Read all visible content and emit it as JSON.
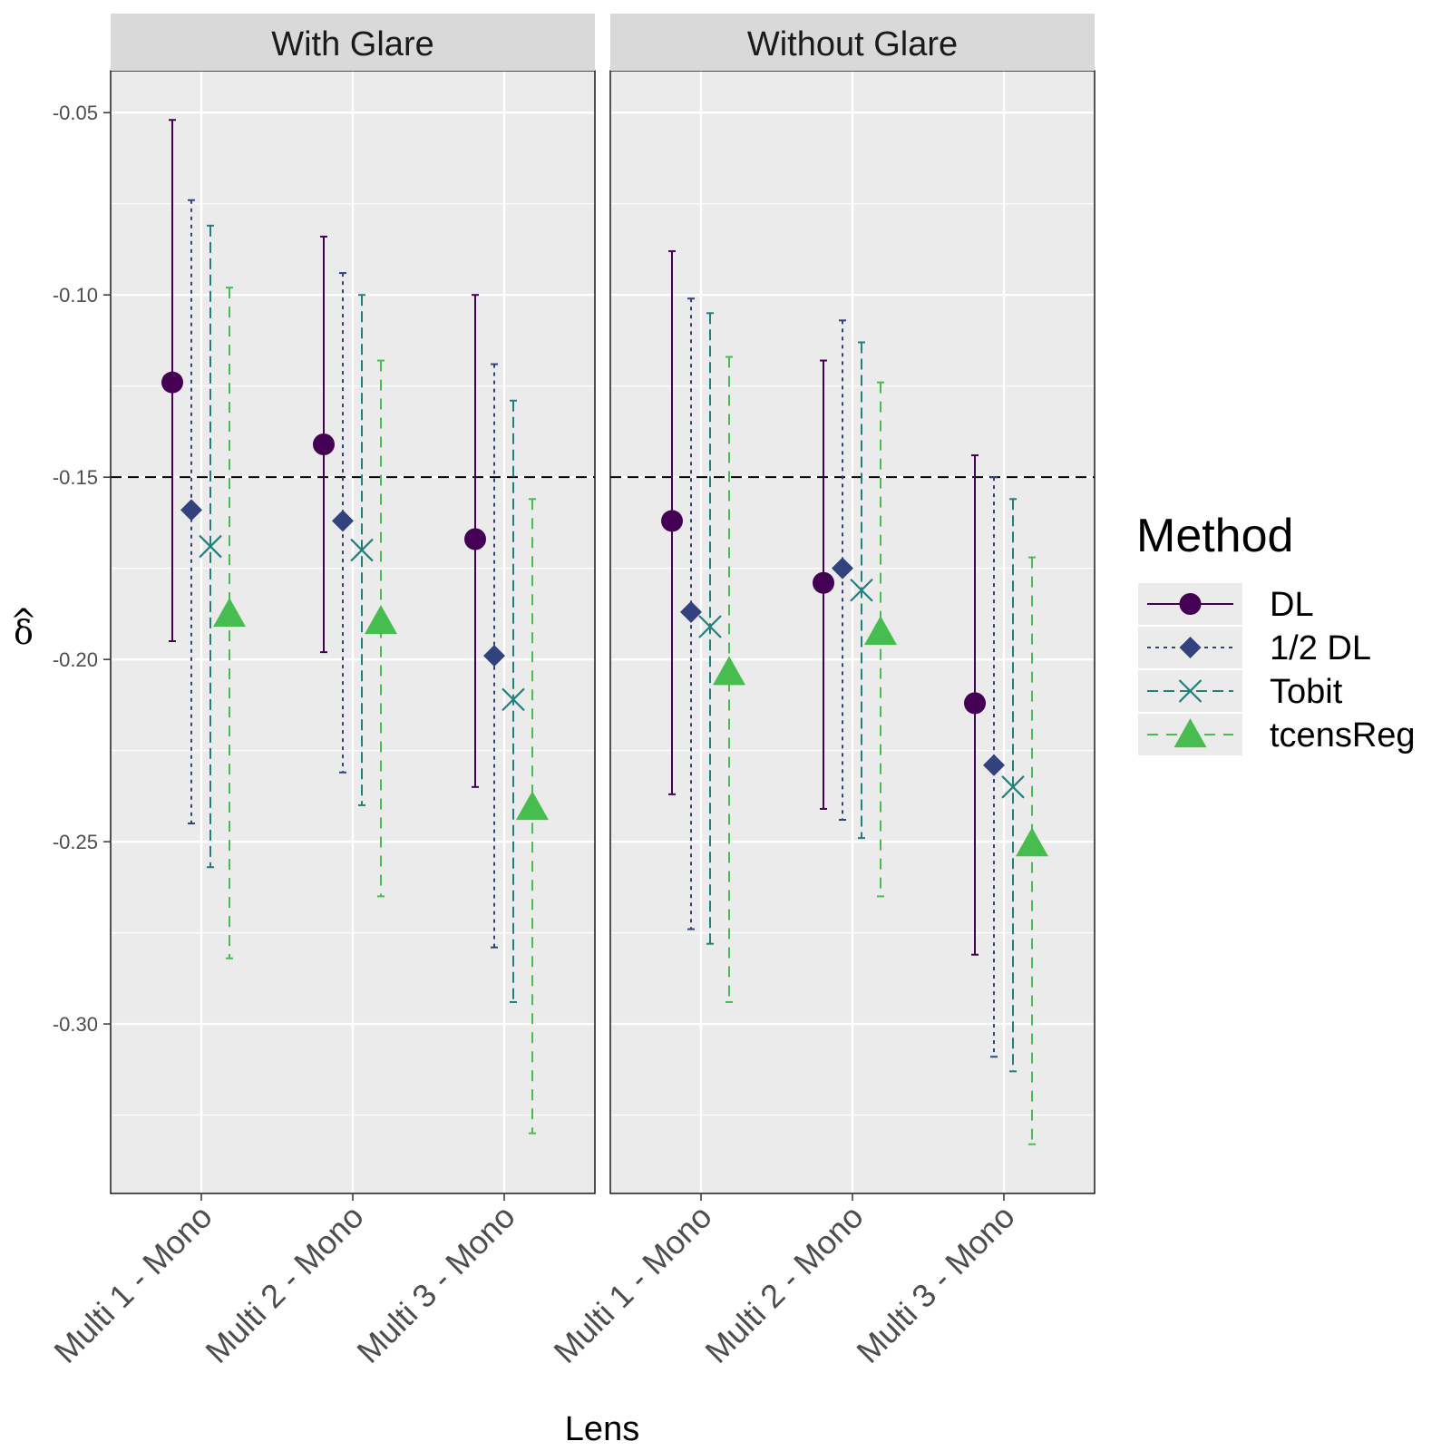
{
  "chart_data": {
    "type": "errorbar",
    "xlabel": "Lens",
    "ylabel": "δ",
    "ylabel_accent": "^",
    "ylim": [
      -0.3465,
      -0.0385
    ],
    "yticks": [
      -0.05,
      -0.1,
      -0.15,
      -0.2,
      -0.25,
      -0.3
    ],
    "ytick_labels": [
      "-0.05",
      "-0.10",
      "-0.15",
      "-0.20",
      "-0.25",
      "-0.30"
    ],
    "reference_line": -0.15,
    "categories": [
      "Multi 1 - Mono",
      "Multi 2 - Mono",
      "Multi 3 - Mono"
    ],
    "facets": [
      "With Glare",
      "Without Glare"
    ],
    "legend_title": "Method",
    "legend_position": "right",
    "series": [
      {
        "name": "DL",
        "color": "#440154",
        "shape": "circle",
        "linetype": "solid",
        "estimates": [
          [
            -0.124,
            -0.141,
            -0.167
          ],
          [
            -0.162,
            -0.179,
            -0.212
          ]
        ],
        "lower": [
          [
            -0.195,
            -0.198,
            -0.235
          ],
          [
            -0.237,
            -0.241,
            -0.281
          ]
        ],
        "upper": [
          [
            -0.052,
            -0.084,
            -0.1
          ],
          [
            -0.088,
            -0.118,
            -0.144
          ]
        ]
      },
      {
        "name": "1/2 DL",
        "color": "#31427f",
        "shape": "diamond",
        "linetype": "dotted",
        "estimates": [
          [
            -0.159,
            -0.162,
            -0.199
          ],
          [
            -0.187,
            -0.175,
            -0.229
          ]
        ],
        "lower": [
          [
            -0.245,
            -0.231,
            -0.279
          ],
          [
            -0.274,
            -0.244,
            -0.309
          ]
        ],
        "upper": [
          [
            -0.074,
            -0.094,
            -0.119
          ],
          [
            -0.101,
            -0.107,
            -0.15
          ]
        ]
      },
      {
        "name": "Tobit",
        "color": "#21807a",
        "shape": "x",
        "linetype": "dashed",
        "estimates": [
          [
            -0.169,
            -0.17,
            -0.211
          ],
          [
            -0.191,
            -0.181,
            -0.235
          ]
        ],
        "lower": [
          [
            -0.257,
            -0.24,
            -0.294
          ],
          [
            -0.278,
            -0.249,
            -0.313
          ]
        ],
        "upper": [
          [
            -0.081,
            -0.1,
            -0.129
          ],
          [
            -0.105,
            -0.113,
            -0.156
          ]
        ]
      },
      {
        "name": "tcensReg",
        "color": "#47bd4f",
        "shape": "triangle",
        "linetype": "longdash",
        "estimates": [
          [
            -0.188,
            -0.19,
            -0.241
          ],
          [
            -0.204,
            -0.193,
            -0.251
          ]
        ],
        "lower": [
          [
            -0.282,
            -0.265,
            -0.33
          ],
          [
            -0.294,
            -0.265,
            -0.333
          ]
        ],
        "upper": [
          [
            -0.098,
            -0.118,
            -0.156
          ],
          [
            -0.117,
            -0.124,
            -0.172
          ]
        ]
      }
    ]
  }
}
